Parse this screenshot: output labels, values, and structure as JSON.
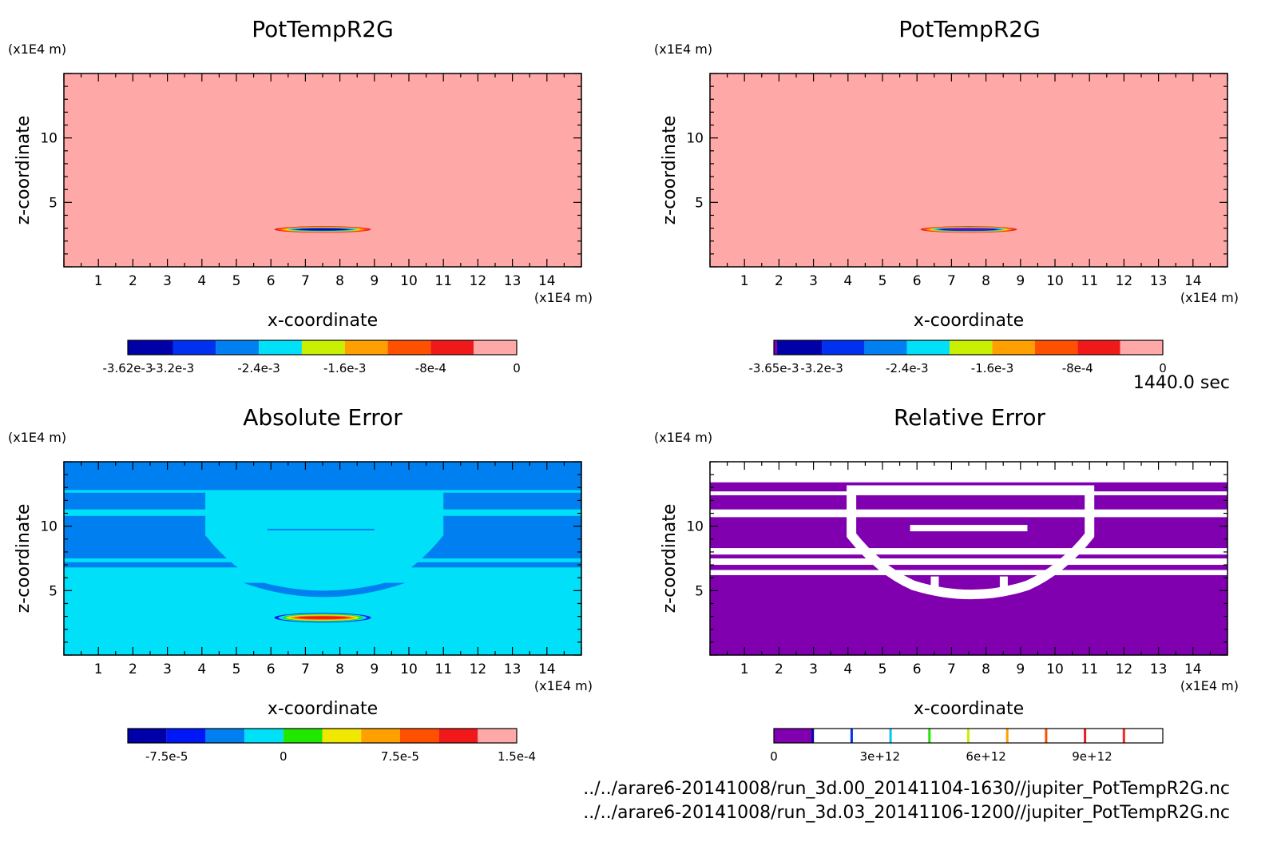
{
  "time_label": "1440.0 sec",
  "files": [
    "../../arare6-20141008/run_3d.00_20141104-1630//jupiter_PotTempR2G.nc",
    "../../arare6-20141008/run_3d.03_20141106-1200//jupiter_PotTempR2G.nc"
  ],
  "chart_data": [
    {
      "type": "heatmap",
      "title": "PotTempR2G",
      "xlabel": "x-coordinate",
      "ylabel": "z-coordinate",
      "x_unit": "(x1E4 m)",
      "y_unit": "(x1E4 m)",
      "x_ticks": [
        "1",
        "2",
        "3",
        "4",
        "5",
        "6",
        "7",
        "8",
        "9",
        "10",
        "11",
        "12",
        "13",
        "14"
      ],
      "y_ticks": [
        "5",
        "10"
      ],
      "xlim": [
        0,
        15
      ],
      "ylim": [
        0,
        15
      ],
      "background": "#ffa8a8",
      "anomaly": {
        "x_center": 7.5,
        "z_center": 2.9,
        "x_half_width": 1.4,
        "z_half_height": 0.25,
        "min_value": -0.00362
      },
      "colorbar": {
        "colors": [
          "#0000a8",
          "#0030f0",
          "#0080f0",
          "#00e0f8",
          "#c8f000",
          "#ffa000",
          "#ff5000",
          "#f01818",
          "#ffa8a8"
        ],
        "levels": [
          -0.00362,
          -0.0032,
          -0.0028,
          -0.0024,
          -0.002,
          -0.0016,
          -0.0012,
          -0.0008,
          -0.0004,
          0
        ],
        "tick_labels": [
          "-3.62e-3",
          "-3.2e-3",
          "-2.4e-3",
          "-1.6e-3",
          "-8e-4",
          "0"
        ]
      }
    },
    {
      "type": "heatmap",
      "title": "PotTempR2G",
      "xlabel": "x-coordinate",
      "ylabel": "z-coordinate",
      "x_unit": "(x1E4 m)",
      "y_unit": "(x1E4 m)",
      "x_ticks": [
        "1",
        "2",
        "3",
        "4",
        "5",
        "6",
        "7",
        "8",
        "9",
        "10",
        "11",
        "12",
        "13",
        "14"
      ],
      "y_ticks": [
        "5",
        "10"
      ],
      "xlim": [
        0,
        15
      ],
      "ylim": [
        0,
        15
      ],
      "background": "#ffa8a8",
      "anomaly": {
        "x_center": 7.5,
        "z_center": 2.9,
        "x_half_width": 1.4,
        "z_half_height": 0.25,
        "min_value": -0.00365
      },
      "colorbar": {
        "colors": [
          "#8000b0",
          "#0000a8",
          "#0030f0",
          "#0080f0",
          "#00e0f8",
          "#c8f000",
          "#ffa000",
          "#ff5000",
          "#f01818",
          "#ffa8a8"
        ],
        "levels": [
          -0.00365,
          -0.00362,
          -0.0032,
          -0.0028,
          -0.0024,
          -0.002,
          -0.0016,
          -0.0012,
          -0.0008,
          -0.0004,
          0
        ],
        "tick_labels": [
          "-3.65e-3",
          "-3.2e-3",
          "-2.4e-3",
          "-1.6e-3",
          "-8e-4",
          "0"
        ]
      }
    },
    {
      "type": "heatmap",
      "title": "Absolute Error",
      "xlabel": "x-coordinate",
      "ylabel": "z-coordinate",
      "x_unit": "(x1E4 m)",
      "y_unit": "(x1E4 m)",
      "x_ticks": [
        "1",
        "2",
        "3",
        "4",
        "5",
        "6",
        "7",
        "8",
        "9",
        "10",
        "11",
        "12",
        "13",
        "14"
      ],
      "y_ticks": [
        "5",
        "10"
      ],
      "xlim": [
        0,
        15
      ],
      "ylim": [
        0,
        15
      ],
      "colorbar": {
        "colors": [
          "#0000a8",
          "#0018f8",
          "#0080f0",
          "#00e0f8",
          "#20e800",
          "#f0e800",
          "#ffa000",
          "#ff5000",
          "#f01818",
          "#ffa8a8"
        ],
        "levels": [
          -0.0001,
          -7.5e-05,
          -5e-05,
          -2.5e-05,
          0,
          2.5e-05,
          5e-05,
          7.5e-05,
          0.0001,
          0.000125,
          0.00015
        ],
        "tick_labels": [
          "-7.5e-5",
          "0",
          "7.5e-5",
          "1.5e-4"
        ]
      }
    },
    {
      "type": "heatmap",
      "title": "Relative Error",
      "xlabel": "x-coordinate",
      "ylabel": "z-coordinate",
      "x_unit": "(x1E4 m)",
      "y_unit": "(x1E4 m)",
      "x_ticks": [
        "1",
        "2",
        "3",
        "4",
        "5",
        "6",
        "7",
        "8",
        "9",
        "10",
        "11",
        "12",
        "13",
        "14"
      ],
      "y_ticks": [
        "5",
        "10"
      ],
      "xlim": [
        0,
        15
      ],
      "ylim": [
        0,
        15
      ],
      "colorbar": {
        "colors": [
          "#8000b0",
          "#ffffff",
          "#ffffff",
          "#ffffff",
          "#ffffff",
          "#ffffff",
          "#ffffff",
          "#ffffff",
          "#ffffff",
          "#ffffff",
          "#ffffff"
        ],
        "separator_colors": [
          "#0000a8",
          "#0030f0",
          "#00c8f0",
          "#20e800",
          "#c8f000",
          "#ffa000",
          "#ff5000",
          "#f01818",
          "#ff2020"
        ],
        "tick_labels": [
          "0",
          "3e+12",
          "6e+12",
          "9e+12"
        ],
        "tick_values": [
          0,
          3000000000000.0,
          6000000000000.0,
          9000000000000.0
        ],
        "max": 11000000000000.0
      }
    }
  ]
}
